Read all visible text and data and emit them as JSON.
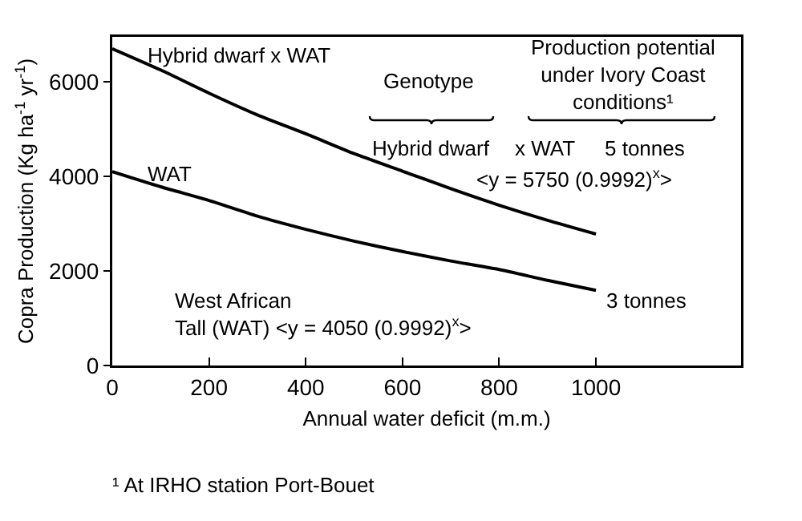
{
  "chart_data": {
    "type": "line",
    "xlabel": "Annual water deficit (m.m.)",
    "ylabel": "Copra Production (Kg ha$^{-1}$ yr$^{-1}$)",
    "x": [
      0,
      100,
      200,
      300,
      400,
      500,
      600,
      700,
      800,
      900,
      1000
    ],
    "series": [
      {
        "name": "Hybrid dwarf x WAT",
        "color": "#000000",
        "values": [
          6700,
          6250,
          5760,
          5300,
          4900,
          4480,
          4110,
          3740,
          3390,
          3070,
          2780
        ]
      },
      {
        "name": "WAT",
        "color": "#000000",
        "values": [
          4100,
          3780,
          3490,
          3160,
          2880,
          2630,
          2410,
          2210,
          2030,
          1800,
          1590
        ]
      }
    ],
    "xlim": [
      0,
      1300
    ],
    "xticks": [
      0,
      200,
      400,
      600,
      800,
      1000
    ],
    "ylim": [
      0,
      6950
    ],
    "yticks": [
      0,
      2000,
      4000,
      6000
    ],
    "grid": false,
    "legend": false,
    "marker": "none",
    "line_style": "solid",
    "annotations": [
      "Genotype",
      "Production potential\nunder Ivory Coast\nconditions¹",
      "Hybrid dwarf",
      "x WAT",
      "5 tonnes",
      "<y = 5750 (0.9992)$^{x}$>",
      "3 tonnes",
      "West African\nTall (WAT) <y = 4050 (0.9992)$^{x}$>",
      "¹ At IRHO station Port-Bouet"
    ]
  }
}
